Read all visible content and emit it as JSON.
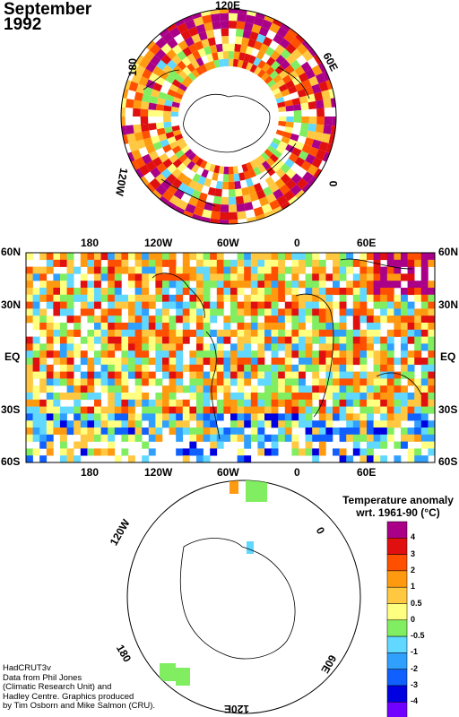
{
  "title": {
    "month": "September",
    "year": "1992"
  },
  "north_polar": {
    "labels": [
      "120E",
      "60E",
      "0",
      "120W",
      "180"
    ]
  },
  "main_map": {
    "top_labels": [
      "180",
      "120W",
      "60W",
      "0",
      "60E"
    ],
    "bottom_labels": [
      "180",
      "120W",
      "60W",
      "0",
      "60E"
    ],
    "left_labels": [
      "60N",
      "30N",
      "EQ",
      "30S",
      "60S"
    ],
    "right_labels": [
      "60N",
      "30N",
      "EQ",
      "30S",
      "60S"
    ]
  },
  "south_polar": {
    "labels": [
      "60W",
      "0",
      "60E",
      "120E",
      "180",
      "120W"
    ]
  },
  "legend": {
    "title_line1": "Temperature anomaly",
    "title_line2": "wrt. 1961-90  (°C)",
    "labels": [
      "4",
      "3",
      "2",
      "1",
      "0.5",
      "0",
      "-0.5",
      "-1",
      "-2",
      "-3",
      "-4"
    ],
    "colors": [
      "#aa0088",
      "#e01010",
      "#ff5000",
      "#ff9a10",
      "#ffc840",
      "#ffff80",
      "#80ee60",
      "#60d8ff",
      "#30a0ff",
      "#1060ff",
      "#0000e0",
      "#7000ff"
    ]
  },
  "credits": {
    "line1": "HadCRUT3v",
    "line2": "Data from Phil Jones",
    "line3": "(Climatic Research Unit) and",
    "line4": "Hadley Centre.  Graphics produced",
    "line5": "by Tim Osborn and Mike Salmon (CRU)."
  }
}
